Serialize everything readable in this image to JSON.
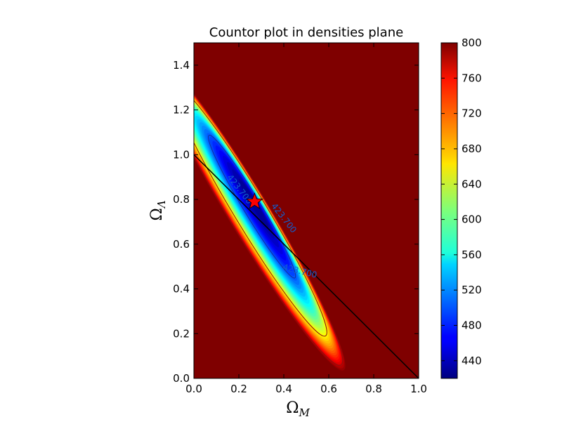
{
  "chart_data": {
    "type": "heatmap",
    "subtype": "filled-contour",
    "title": "Countor plot in densities plane",
    "xlabel": {
      "main": "Ω",
      "sub": "M"
    },
    "ylabel": {
      "main": "Ω",
      "sub": "Λ"
    },
    "xlim": [
      0.0,
      1.0
    ],
    "ylim": [
      0.0,
      1.5
    ],
    "xticks": [
      "0.0",
      "0.2",
      "0.4",
      "0.6",
      "0.8",
      "1.0"
    ],
    "yticks": [
      "0.0",
      "0.2",
      "0.4",
      "0.6",
      "0.8",
      "1.0",
      "1.2",
      "1.4"
    ],
    "colorbar": {
      "range": [
        420,
        800
      ],
      "colormap": "jet",
      "ticks": [
        "440",
        "480",
        "520",
        "560",
        "600",
        "640",
        "680",
        "720",
        "760",
        "800"
      ]
    },
    "field": {
      "minimum": {
        "x": 0.27,
        "y": 0.79,
        "value": 423
      },
      "valley_direction": {
        "dx": 0.6,
        "dy": -1.0
      },
      "max_value": 800
    },
    "contour_labels": [
      "423.700",
      "423.700",
      "423.700"
    ],
    "reference_line": {
      "from": [
        0.0,
        1.0
      ],
      "to": [
        1.0,
        0.0
      ],
      "color": "#000000"
    },
    "best_fit_marker": {
      "symbol": "star",
      "color": "#ff0000",
      "x": 0.27,
      "y": 0.79
    }
  }
}
